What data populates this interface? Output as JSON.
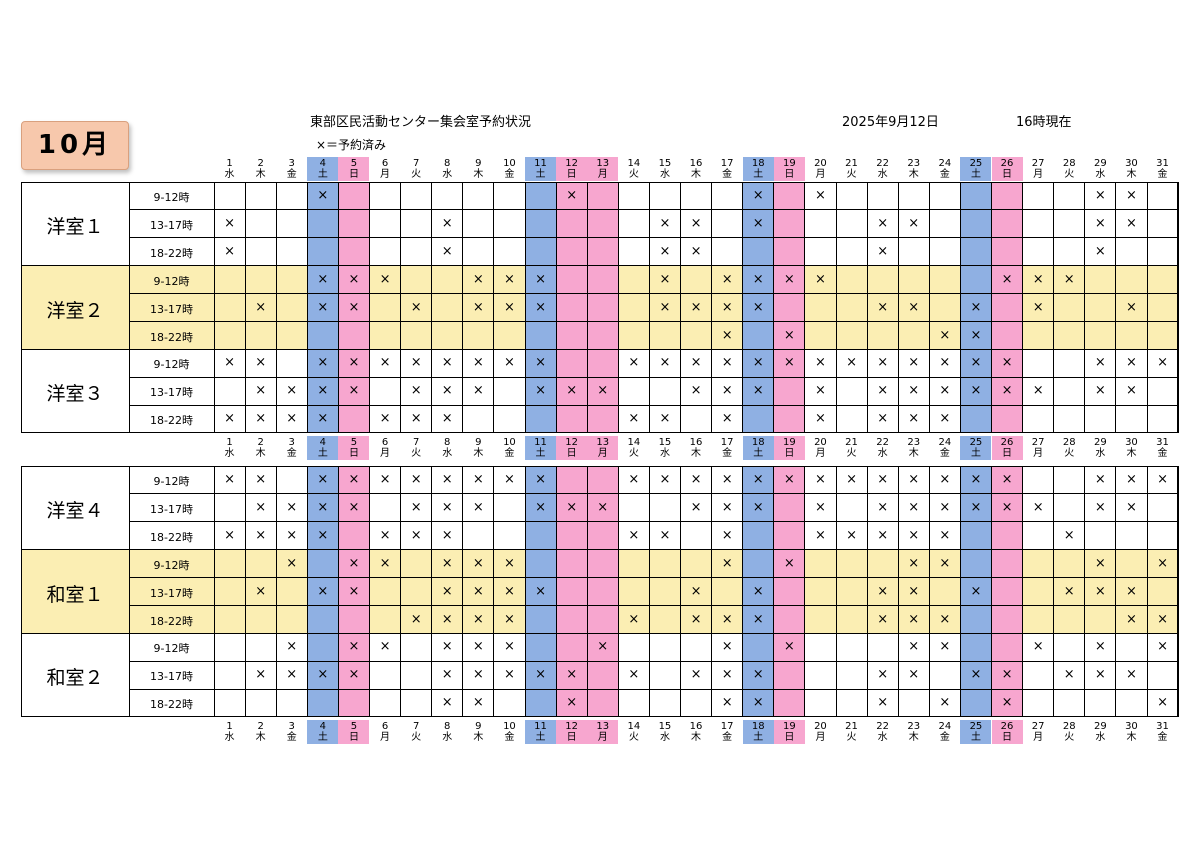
{
  "header": {
    "month": "10月",
    "title": "東部区民活動センター集会室予約状況",
    "legend": "×＝予約済み",
    "date": "2025年9月12日",
    "time": "16時現在"
  },
  "colors": {
    "saturday": "#8fb0e3",
    "holiday": "#f7a6cf",
    "highlight_row": "#fbeeb3",
    "month_badge": "#f7c8ac",
    "border": "#000000"
  },
  "days": [
    "1",
    "2",
    "3",
    "4",
    "5",
    "6",
    "7",
    "8",
    "9",
    "10",
    "11",
    "12",
    "13",
    "14",
    "15",
    "16",
    "17",
    "18",
    "19",
    "20",
    "21",
    "22",
    "23",
    "24",
    "25",
    "26",
    "27",
    "28",
    "29",
    "30",
    "31"
  ],
  "weekdays": [
    "水",
    "木",
    "金",
    "土",
    "日",
    "月",
    "火",
    "水",
    "木",
    "金",
    "土",
    "日",
    "月",
    "火",
    "水",
    "木",
    "金",
    "土",
    "日",
    "月",
    "火",
    "水",
    "木",
    "金",
    "土",
    "日",
    "月",
    "火",
    "水",
    "木",
    "金"
  ],
  "saturday_days": [
    4,
    11,
    18,
    25
  ],
  "holiday_days": [
    5,
    12,
    13,
    19,
    26
  ],
  "slots": [
    "9-12時",
    "13-17時",
    "18-22時"
  ],
  "rooms": [
    {
      "name": "洋室１",
      "highlight": false,
      "reservations": [
        [
          4,
          12,
          18,
          20,
          29,
          30
        ],
        [
          1,
          8,
          15,
          16,
          18,
          22,
          23,
          29,
          30
        ],
        [
          1,
          8,
          15,
          16,
          22,
          29
        ]
      ]
    },
    {
      "name": "洋室２",
      "highlight": true,
      "reservations": [
        [
          4,
          5,
          6,
          9,
          10,
          11,
          15,
          17,
          18,
          19,
          20,
          26,
          27,
          28
        ],
        [
          2,
          4,
          5,
          7,
          9,
          10,
          11,
          15,
          16,
          17,
          18,
          22,
          23,
          25,
          27,
          30
        ],
        [
          17,
          19,
          24,
          25
        ]
      ]
    },
    {
      "name": "洋室３",
      "highlight": false,
      "reservations": [
        [
          1,
          2,
          4,
          5,
          6,
          7,
          8,
          9,
          10,
          11,
          14,
          15,
          16,
          17,
          18,
          19,
          20,
          21,
          22,
          23,
          24,
          25,
          26,
          29,
          30,
          31
        ],
        [
          2,
          3,
          4,
          5,
          7,
          8,
          9,
          11,
          12,
          13,
          16,
          17,
          18,
          20,
          22,
          23,
          24,
          25,
          26,
          27,
          29,
          30
        ],
        [
          1,
          2,
          3,
          4,
          6,
          7,
          8,
          14,
          15,
          17,
          20,
          22,
          23,
          24
        ]
      ]
    },
    {
      "name": "洋室４",
      "highlight": false,
      "reservations": [
        [
          1,
          2,
          4,
          5,
          6,
          7,
          8,
          9,
          10,
          11,
          14,
          15,
          16,
          17,
          18,
          19,
          20,
          21,
          22,
          23,
          24,
          25,
          26,
          29,
          30,
          31
        ],
        [
          2,
          3,
          4,
          5,
          7,
          8,
          9,
          11,
          12,
          13,
          16,
          17,
          18,
          20,
          22,
          23,
          24,
          25,
          26,
          27,
          29,
          30
        ],
        [
          1,
          2,
          3,
          4,
          6,
          7,
          8,
          14,
          15,
          17,
          20,
          21,
          22,
          23,
          24,
          28
        ]
      ]
    },
    {
      "name": "和室１",
      "highlight": true,
      "reservations": [
        [
          3,
          5,
          6,
          8,
          9,
          10,
          17,
          19,
          23,
          24,
          29,
          31
        ],
        [
          2,
          4,
          5,
          8,
          9,
          10,
          11,
          16,
          18,
          22,
          23,
          25,
          28,
          29,
          30
        ],
        [
          7,
          8,
          9,
          10,
          14,
          16,
          17,
          18,
          22,
          23,
          24,
          30,
          31
        ]
      ]
    },
    {
      "name": "和室２",
      "highlight": false,
      "reservations": [
        [
          3,
          5,
          6,
          8,
          9,
          10,
          13,
          17,
          19,
          23,
          24,
          27,
          29,
          31
        ],
        [
          2,
          3,
          4,
          5,
          8,
          9,
          10,
          11,
          12,
          14,
          16,
          17,
          18,
          22,
          23,
          25,
          26,
          28,
          29,
          30
        ],
        [
          8,
          9,
          12,
          17,
          18,
          22,
          24,
          26,
          31
        ]
      ]
    }
  ],
  "mark": "×"
}
